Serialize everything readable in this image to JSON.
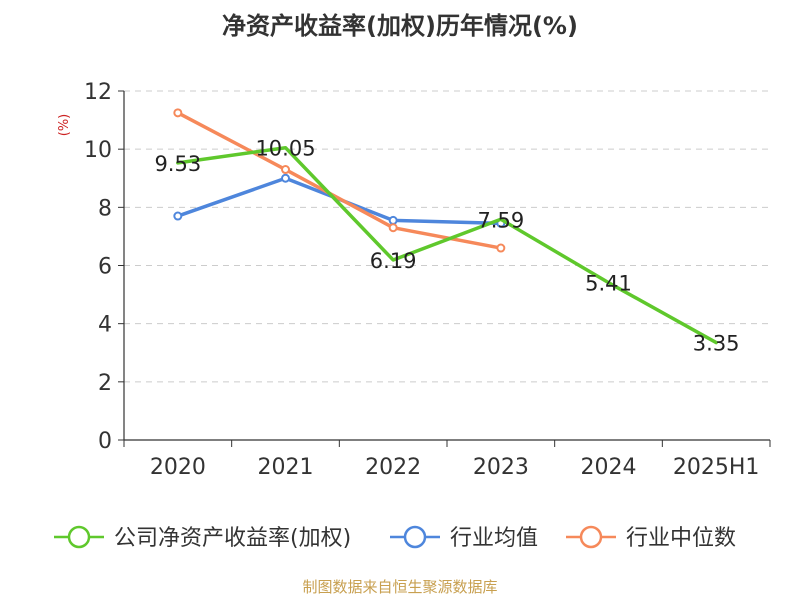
{
  "chart_data": {
    "type": "line",
    "title": "净资产收益率(加权)历年情况(%)",
    "ylabel": "(%)",
    "ylim": [
      0,
      12
    ],
    "yticks": [
      0,
      2,
      4,
      6,
      8,
      10,
      12
    ],
    "categories": [
      "2020",
      "2021",
      "2022",
      "2023",
      "2024",
      "2025H1"
    ],
    "grid": true,
    "legend_position": "bottom",
    "series": [
      {
        "name": "公司净资产收益率(加权)",
        "color": "#5fc82c",
        "values": [
          9.53,
          10.05,
          6.19,
          7.59,
          5.41,
          3.35
        ],
        "labels": [
          "9.53",
          "10.05",
          "6.19",
          "7.59",
          "5.41",
          "3.35"
        ],
        "show_markers": false
      },
      {
        "name": "行业均值",
        "color": "#4e86dc",
        "values": [
          7.7,
          9.0,
          7.55,
          7.45,
          null,
          null
        ],
        "show_markers": true
      },
      {
        "name": "行业中位数",
        "color": "#f6895a",
        "values": [
          11.25,
          9.3,
          7.3,
          6.6,
          null,
          null
        ],
        "show_markers": true
      }
    ]
  },
  "source": "制图数据来自恒生聚源数据库"
}
